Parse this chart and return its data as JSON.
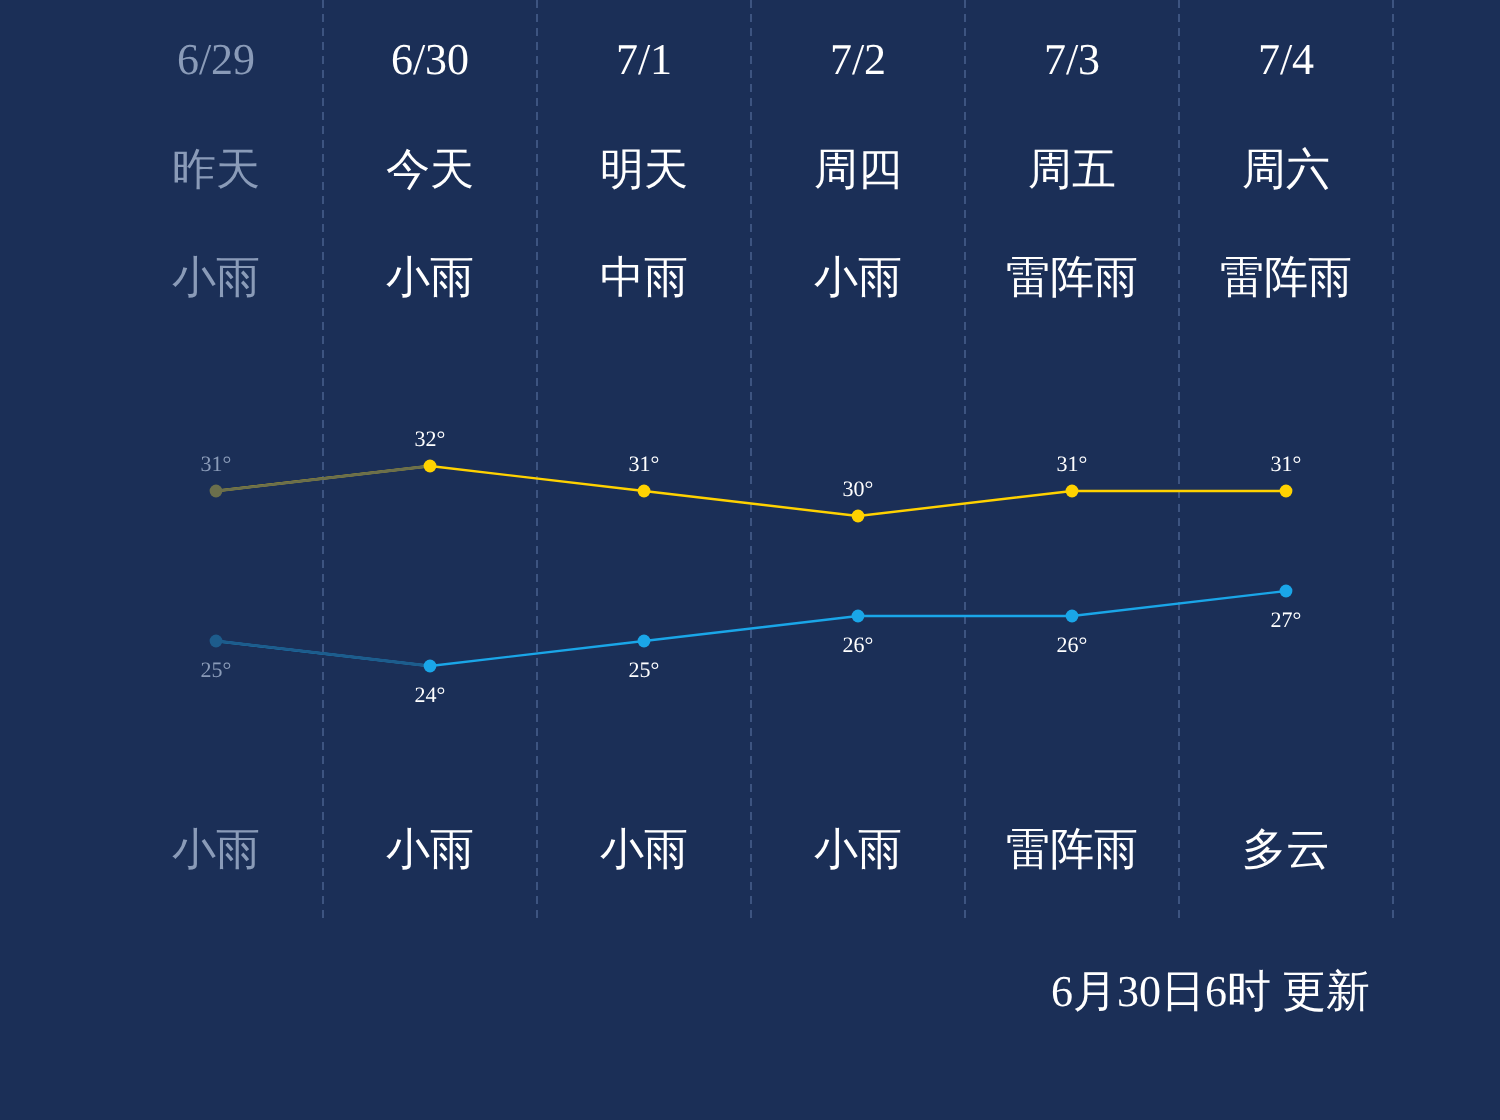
{
  "chart_data": {
    "type": "line",
    "categories": [
      "6/29",
      "6/30",
      "7/1",
      "7/2",
      "7/3",
      "7/4"
    ],
    "series": [
      {
        "color": "#ffd200",
        "colors": [
          "#6b6f4c",
          "#ffd200",
          "#ffd200",
          "#ffd200",
          "#ffd200",
          "#ffd200"
        ],
        "values": [
          31,
          32,
          31,
          30,
          31,
          31
        ],
        "value_labels": [
          "31°",
          "32°",
          "31°",
          "30°",
          "31°",
          "31°"
        ]
      },
      {
        "color": "#1aa6e8",
        "colors": [
          "#1d5c8c",
          "#1aa6e8",
          "#1aa6e8",
          "#1aa6e8",
          "#1aa6e8",
          "#1aa6e8"
        ],
        "values": [
          25,
          24,
          25,
          26,
          26,
          27
        ],
        "value_labels": [
          "25°",
          "24°",
          "25°",
          "26°",
          "26°",
          "27°"
        ]
      }
    ],
    "marker": "circle",
    "grid": "x",
    "annotations": [
      "昨天",
      "今天",
      "明天",
      "周四",
      "周五",
      "周六",
      "小雨",
      "小雨",
      "中雨",
      "小雨",
      "雷阵雨",
      "雷阵雨",
      "小雨",
      "小雨",
      "小雨",
      "小雨",
      "雷阵雨",
      "多云",
      "6月30日6时 更新"
    ]
  }
}
